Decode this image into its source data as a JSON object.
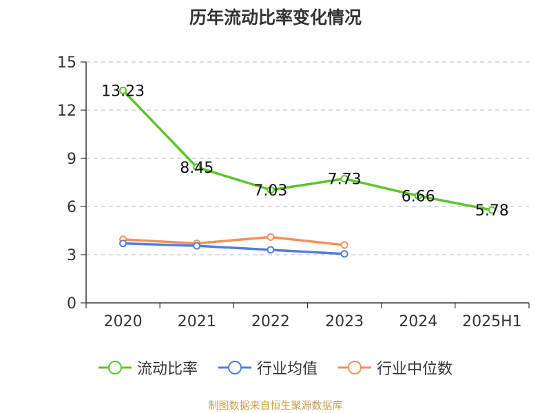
{
  "chart_data": {
    "type": "line",
    "title": "历年流动比率变化情况",
    "categories": [
      "2020",
      "2021",
      "2022",
      "2023",
      "2024",
      "2025H1"
    ],
    "ylim": [
      0,
      15
    ],
    "yticks": [
      0,
      3,
      6,
      9,
      12,
      15
    ],
    "grid": true,
    "legend_position": "bottom",
    "series": [
      {
        "name": "流动比率",
        "color": "#5cc52a",
        "values": [
          13.23,
          8.45,
          7.03,
          7.73,
          6.66,
          5.78
        ],
        "labels": [
          "13.23",
          "8.45",
          "7.03",
          "7.73",
          "6.66",
          "5.78"
        ]
      },
      {
        "name": "行业均值",
        "color": "#4f7fde",
        "values": [
          3.7,
          3.55,
          3.3,
          3.05,
          null,
          null
        ]
      },
      {
        "name": "行业中位数",
        "color": "#f5905a",
        "values": [
          3.95,
          3.7,
          4.1,
          3.6,
          null,
          null
        ]
      }
    ]
  },
  "source": "制图数据来自恒生聚源数据库"
}
